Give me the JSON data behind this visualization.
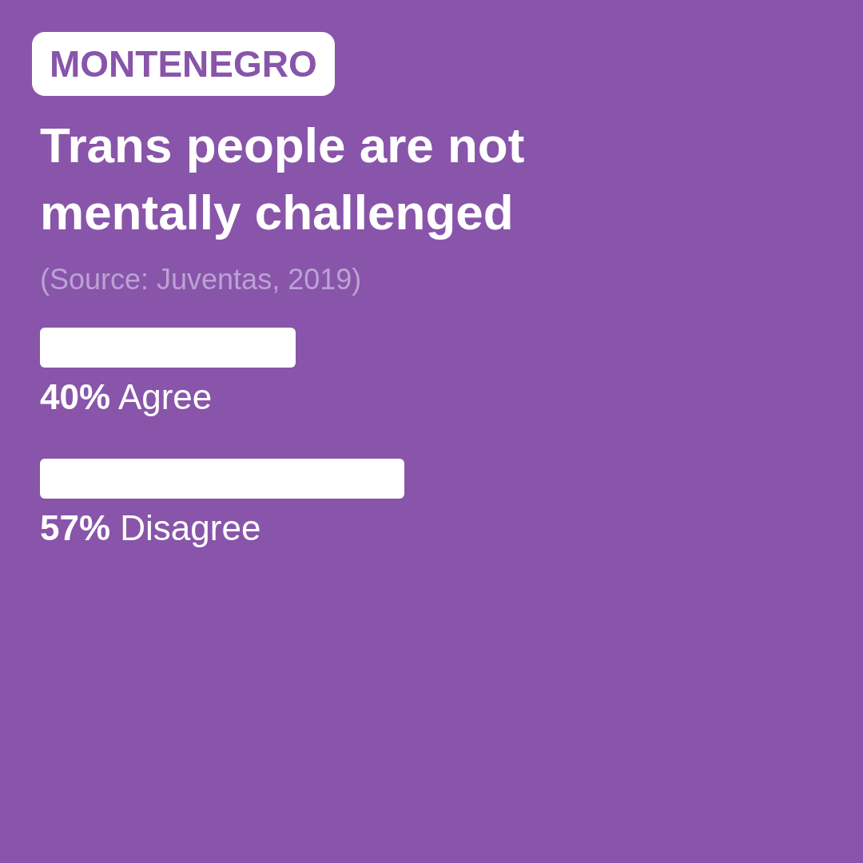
{
  "chart_data": {
    "type": "bar",
    "orientation": "horizontal",
    "subtitle": "MONTENEGRO",
    "title": "Trans people are not mentally challenged",
    "annotations": [
      "(Source: Juventas, 2019)"
    ],
    "categories": [
      "Agree",
      "Disagree"
    ],
    "values": [
      40,
      57
    ],
    "value_labels": [
      "40%",
      "57%"
    ],
    "color": "#ffffff",
    "tick_labels": false
  }
}
